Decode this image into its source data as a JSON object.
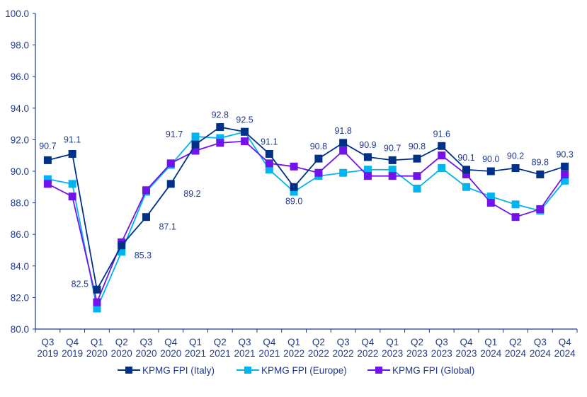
{
  "chart_data": {
    "type": "line",
    "title": "",
    "xlabel": "",
    "ylabel": "",
    "ylim": [
      80,
      100
    ],
    "yticks": [
      "80.0",
      "82.0",
      "84.0",
      "86.0",
      "88.0",
      "90.0",
      "92.0",
      "94.0",
      "96.0",
      "98.0",
      "100.0"
    ],
    "grid": false,
    "legend_position": "bottom",
    "categories": [
      [
        "Q3",
        "2019"
      ],
      [
        "Q4",
        "2019"
      ],
      [
        "Q1",
        "2020"
      ],
      [
        "Q2",
        "2020"
      ],
      [
        "Q3",
        "2020"
      ],
      [
        "Q4",
        "2020"
      ],
      [
        "Q1",
        "2021"
      ],
      [
        "Q2",
        "2021"
      ],
      [
        "Q3",
        "2021"
      ],
      [
        "Q4",
        "2021"
      ],
      [
        "Q1",
        "2022"
      ],
      [
        "Q2",
        "2022"
      ],
      [
        "Q3",
        "2022"
      ],
      [
        "Q4",
        "2022"
      ],
      [
        "Q1",
        "2023"
      ],
      [
        "Q2",
        "2023"
      ],
      [
        "Q3",
        "2023"
      ],
      [
        "Q4",
        "2023"
      ],
      [
        "Q1",
        "2024"
      ],
      [
        "Q2",
        "2024"
      ],
      [
        "Q3",
        "2024"
      ],
      [
        "Q4",
        "2024"
      ]
    ],
    "series": [
      {
        "name": "KPMG FPI (Italy)",
        "color": "#003087",
        "marker": "square",
        "data_labels": true,
        "values": [
          90.7,
          91.1,
          82.5,
          85.3,
          87.1,
          89.2,
          91.7,
          92.8,
          92.5,
          91.1,
          89.0,
          90.8,
          91.8,
          90.9,
          90.7,
          90.8,
          91.6,
          90.1,
          90.0,
          90.2,
          89.8,
          90.3
        ]
      },
      {
        "name": "KPMG FPI (Europe)",
        "color": "#00B5EF",
        "marker": "square",
        "data_labels": false,
        "values": [
          89.5,
          89.2,
          81.3,
          84.9,
          88.7,
          90.4,
          92.2,
          92.1,
          92.5,
          90.1,
          88.7,
          89.7,
          89.9,
          90.1,
          90.1,
          88.9,
          90.2,
          89.0,
          88.4,
          87.9,
          87.5,
          89.4
        ]
      },
      {
        "name": "KPMG FPI (Global)",
        "color": "#7213EA",
        "marker": "square",
        "data_labels": false,
        "values": [
          89.2,
          88.4,
          81.7,
          85.5,
          88.8,
          90.5,
          91.3,
          91.8,
          91.9,
          90.5,
          90.3,
          89.9,
          91.3,
          89.7,
          89.7,
          89.7,
          91.0,
          89.8,
          88.0,
          87.1,
          87.6,
          89.8
        ]
      }
    ],
    "text_color": "#1F3A93"
  }
}
